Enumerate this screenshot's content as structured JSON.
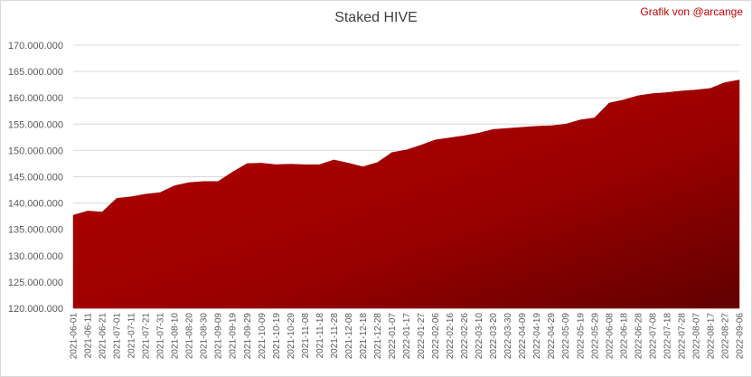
{
  "chart_data": {
    "type": "area",
    "title": "Staked HIVE",
    "annotation": "Grafik von @arcange",
    "categories": [
      "2021-06-01",
      "2021-06-11",
      "2021-06-21",
      "2021-07-01",
      "2021-07-11",
      "2021-07-21",
      "2021-07-31",
      "2021-08-10",
      "2021-08-20",
      "2021-08-30",
      "2021-09-09",
      "2021-09-19",
      "2021-09-29",
      "2021-10-09",
      "2021-10-19",
      "2021-10-29",
      "2021-11-08",
      "2021-11-18",
      "2021-11-28",
      "2021-12-08",
      "2021-12-18",
      "2021-12-28",
      "2022-01-07",
      "2022-01-17",
      "2022-01-27",
      "2022-02-06",
      "2022-02-16",
      "2022-02-26",
      "2022-03-10",
      "2022-03-20",
      "2022-03-30",
      "2022-04-09",
      "2022-04-19",
      "2022-04-29",
      "2022-05-09",
      "2022-05-19",
      "2022-05-29",
      "2022-06-08",
      "2022-06-18",
      "2022-06-28",
      "2022-07-08",
      "2022-07-18",
      "2022-07-28",
      "2022-08-07",
      "2022-08-17",
      "2022-08-27",
      "2022-09-06"
    ],
    "values": [
      137700000,
      138500000,
      138300000,
      140900000,
      141200000,
      141700000,
      142000000,
      143300000,
      143900000,
      144100000,
      144100000,
      145900000,
      147500000,
      147600000,
      147300000,
      147400000,
      147300000,
      147300000,
      148200000,
      147600000,
      146900000,
      147700000,
      149600000,
      150100000,
      151000000,
      152000000,
      152400000,
      152800000,
      153300000,
      154000000,
      154200000,
      154400000,
      154600000,
      154700000,
      155000000,
      155800000,
      156200000,
      159000000,
      159600000,
      160400000,
      160800000,
      161000000,
      161300000,
      161500000,
      161800000,
      162900000,
      163400000
    ],
    "color": "#a00000",
    "ylim": [
      120000000,
      170000000
    ],
    "yticks": [
      {
        "value": 120000000,
        "label": "120.000.000"
      },
      {
        "value": 125000000,
        "label": "125.000.000"
      },
      {
        "value": 130000000,
        "label": "130.000.000"
      },
      {
        "value": 135000000,
        "label": "135.000.000"
      },
      {
        "value": 140000000,
        "label": "140.000.000"
      },
      {
        "value": 145000000,
        "label": "145.000.000"
      },
      {
        "value": 150000000,
        "label": "150.000.000"
      },
      {
        "value": 155000000,
        "label": "155.000.000"
      },
      {
        "value": 160000000,
        "label": "160.000.000"
      },
      {
        "value": 165000000,
        "label": "165.000.000"
      },
      {
        "value": 170000000,
        "label": "170.000.000"
      }
    ],
    "grid": true
  }
}
